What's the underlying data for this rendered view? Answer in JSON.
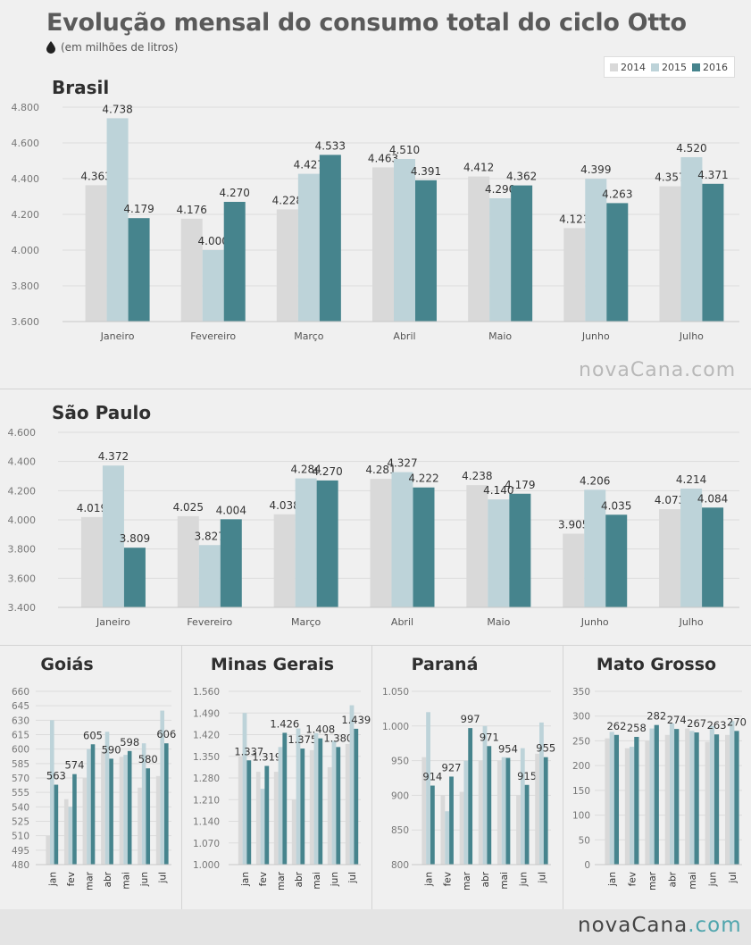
{
  "header": {
    "title": "Evolução mensal do consumo total do ciclo Otto",
    "subtitle": "(em milhões de litros)",
    "icon": "drop-icon"
  },
  "legend": {
    "items": [
      {
        "label": "2014",
        "color": "#d9d9d9"
      },
      {
        "label": "2015",
        "color": "#bdd3d9"
      },
      {
        "label": "2016",
        "color": "#46848d"
      }
    ]
  },
  "brand": {
    "text_main": "novaCana",
    "text_suffix": ".com"
  },
  "colors": {
    "y2014": "#d9d9d9",
    "y2015": "#bdd3d9",
    "y2016": "#46848d"
  },
  "chart_data": [
    {
      "id": "brasil",
      "type": "bar",
      "title": "Brasil",
      "categories": [
        "Janeiro",
        "Fevereiro",
        "Março",
        "Abril",
        "Maio",
        "Junho",
        "Julho"
      ],
      "series": [
        {
          "name": "2014",
          "values": [
            4363,
            4176,
            4228,
            4463,
            4412,
            4123,
            4357
          ]
        },
        {
          "name": "2015",
          "values": [
            4738,
            4000,
            4427,
            4510,
            4290,
            4399,
            4520
          ]
        },
        {
          "name": "2016",
          "values": [
            4179,
            4270,
            4533,
            4391,
            4362,
            4263,
            4371
          ]
        }
      ],
      "labels": [
        [
          "4.363",
          "4.176",
          "4.228",
          "4.463",
          "4.412",
          "4.123",
          "4.357"
        ],
        [
          "4.738",
          "4.000",
          "4.427",
          "4.510",
          "4.290",
          "4.399",
          "4.520"
        ],
        [
          "4.179",
          "4.270",
          "4.533",
          "4.391",
          "4.362",
          "4.263",
          "4.371"
        ]
      ],
      "ylim": [
        3600,
        4800
      ],
      "yticks": [
        3600,
        3800,
        4000,
        4200,
        4400,
        4600,
        4800
      ],
      "ytick_labels": [
        "3.600",
        "3.800",
        "4.000",
        "4.200",
        "4.400",
        "4.600",
        "4.800"
      ],
      "grid": true
    },
    {
      "id": "saopaulo",
      "type": "bar",
      "title": "São Paulo",
      "categories": [
        "Janeiro",
        "Fevereiro",
        "Março",
        "Abril",
        "Maio",
        "Junho",
        "Julho"
      ],
      "series": [
        {
          "name": "2014",
          "values": [
            4019,
            4025,
            4038,
            4281,
            4238,
            3905,
            4073
          ]
        },
        {
          "name": "2015",
          "values": [
            4372,
            3827,
            4284,
            4327,
            4140,
            4206,
            4214
          ]
        },
        {
          "name": "2016",
          "values": [
            3809,
            4004,
            4270,
            4222,
            4179,
            4035,
            4084
          ]
        }
      ],
      "labels": [
        [
          "4.019",
          "4.025",
          "4.038",
          "4.281",
          "4.238",
          "3.905",
          "4.073"
        ],
        [
          "4.372",
          "3.827",
          "4.284",
          "4.327",
          "4.140",
          "4.206",
          "4.214"
        ],
        [
          "3.809",
          "4.004",
          "4.270",
          "4.222",
          "4.179",
          "4.035",
          "4.084"
        ]
      ],
      "ylim": [
        3400,
        4600
      ],
      "yticks": [
        3400,
        3600,
        3800,
        4000,
        4200,
        4400,
        4600
      ],
      "ytick_labels": [
        "3.400",
        "3.600",
        "3.800",
        "4.000",
        "4.200",
        "4.400",
        "4.600"
      ],
      "grid": true
    },
    {
      "id": "goias",
      "type": "bar",
      "title": "Goiás",
      "categories": [
        "jan",
        "fev",
        "mar",
        "abr",
        "mai",
        "jun",
        "jul"
      ],
      "series": [
        {
          "name": "2014",
          "values": [
            510,
            548,
            570,
            598,
            592,
            560,
            572
          ]
        },
        {
          "name": "2015",
          "values": [
            630,
            540,
            600,
            618,
            594,
            606,
            640
          ]
        },
        {
          "name": "2016",
          "values": [
            563,
            574,
            605,
            590,
            598,
            580,
            606
          ]
        }
      ],
      "labels": [
        null,
        null,
        [
          "563",
          "574",
          "605",
          "590",
          "598",
          "580",
          "606"
        ]
      ],
      "ylim": [
        480,
        660
      ],
      "yticks": [
        480,
        495,
        510,
        525,
        540,
        555,
        570,
        585,
        600,
        615,
        630,
        645,
        660
      ],
      "ytick_labels": [
        "480",
        "495",
        "510",
        "525",
        "540",
        "555",
        "570",
        "585",
        "600",
        "615",
        "630",
        "645",
        "660"
      ],
      "grid": true
    },
    {
      "id": "minas",
      "type": "bar",
      "title": "Minas Gerais",
      "categories": [
        "jan",
        "fev",
        "mar",
        "abr",
        "mai",
        "jun",
        "jul"
      ],
      "series": [
        {
          "name": "2014",
          "values": [
            1350,
            1300,
            1300,
            1210,
            1370,
            1315,
            1390
          ]
        },
        {
          "name": "2015",
          "values": [
            1490,
            1245,
            1380,
            1440,
            1425,
            1400,
            1515
          ]
        },
        {
          "name": "2016",
          "values": [
            1337,
            1319,
            1426,
            1375,
            1408,
            1380,
            1439
          ]
        }
      ],
      "labels": [
        null,
        null,
        [
          "1.337",
          "1.319",
          "1.426",
          "1.375",
          "1.408",
          "1.380",
          "1.439"
        ]
      ],
      "ylim": [
        1000,
        1560
      ],
      "yticks": [
        1000,
        1070,
        1140,
        1210,
        1280,
        1350,
        1420,
        1490,
        1560
      ],
      "ytick_labels": [
        "1.000",
        "1.070",
        "1.140",
        "1.210",
        "1.280",
        "1.350",
        "1.420",
        "1.490",
        "1.560"
      ],
      "grid": true
    },
    {
      "id": "parana",
      "type": "bar",
      "title": "Paraná",
      "categories": [
        "jan",
        "fev",
        "mar",
        "abr",
        "mai",
        "jun",
        "jul"
      ],
      "series": [
        {
          "name": "2014",
          "values": [
            955,
            900,
            905,
            950,
            950,
            900,
            960
          ]
        },
        {
          "name": "2015",
          "values": [
            1020,
            877,
            950,
            1000,
            955,
            968,
            1005
          ]
        },
        {
          "name": "2016",
          "values": [
            914,
            927,
            997,
            971,
            954,
            915,
            955
          ]
        }
      ],
      "labels": [
        null,
        null,
        [
          "914",
          "927",
          "997",
          "971",
          "954",
          "915",
          "955"
        ]
      ],
      "ylim": [
        800,
        1050
      ],
      "yticks": [
        800,
        850,
        900,
        950,
        1000,
        1050
      ],
      "ytick_labels": [
        "800",
        "850",
        "900",
        "950",
        "1.000",
        "1.050"
      ],
      "grid": true
    },
    {
      "id": "matogrosso",
      "type": "bar",
      "title": "Mato Grosso",
      "categories": [
        "jan",
        "fev",
        "mar",
        "abr",
        "mai",
        "jun",
        "jul"
      ],
      "series": [
        {
          "name": "2014",
          "values": [
            255,
            235,
            250,
            262,
            275,
            248,
            262
          ]
        },
        {
          "name": "2015",
          "values": [
            268,
            238,
            275,
            285,
            270,
            280,
            290
          ]
        },
        {
          "name": "2016",
          "values": [
            262,
            258,
            282,
            274,
            267,
            263,
            270
          ]
        }
      ],
      "labels": [
        null,
        null,
        [
          "262",
          "258",
          "282",
          "274",
          "267",
          "263",
          "270"
        ]
      ],
      "ylim": [
        0,
        350
      ],
      "yticks": [
        0,
        50,
        100,
        150,
        200,
        250,
        300,
        350
      ],
      "ytick_labels": [
        "0",
        "50",
        "100",
        "150",
        "200",
        "250",
        "300",
        "350"
      ],
      "grid": true
    }
  ]
}
